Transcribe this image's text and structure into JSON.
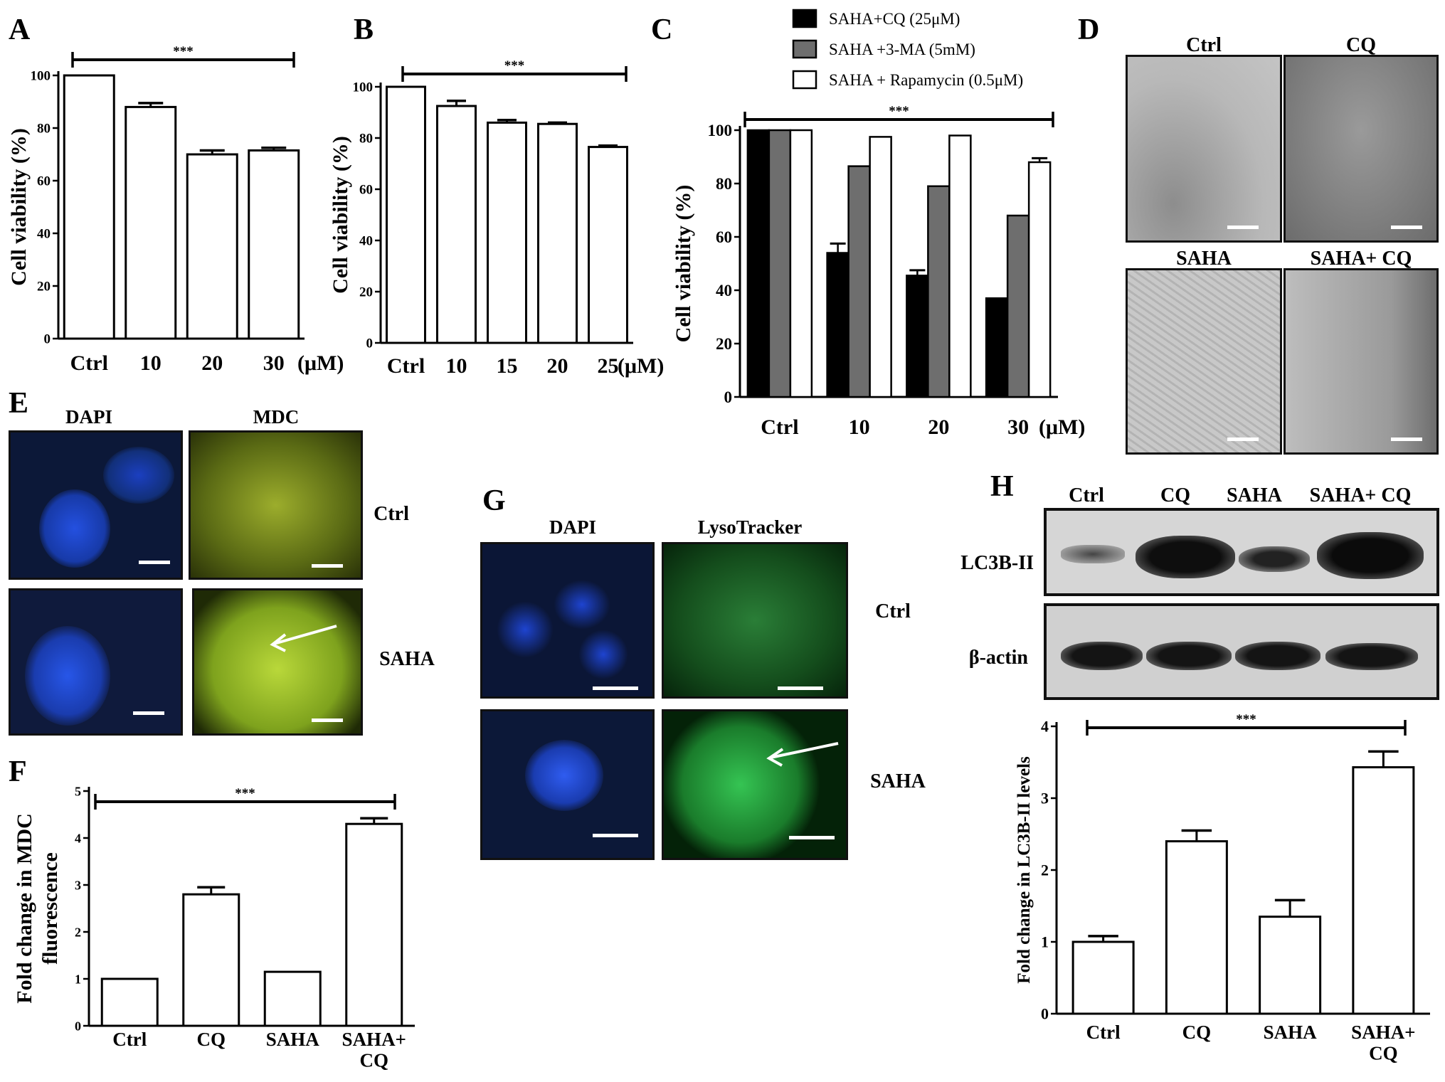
{
  "panels": {
    "A": {
      "letter": "A",
      "chart_data": {
        "type": "bar",
        "ylabel": "Cell viability (%)",
        "xlabel": "",
        "unit_label": "(μM)",
        "ylim": [
          0,
          100
        ],
        "yticks": [
          0,
          20,
          40,
          60,
          80,
          100
        ],
        "categories": [
          "Ctrl",
          "10",
          "20",
          "30"
        ],
        "series": [
          {
            "values": [
              100,
              88,
              70,
              71.5
            ],
            "errors": [
              0,
              1.5,
              1.5,
              1
            ]
          }
        ],
        "significance": "***"
      }
    },
    "B": {
      "letter": "B",
      "chart_data": {
        "type": "bar",
        "ylabel": "Cell viability (%)",
        "xlabel": "",
        "unit_label": "(μM)",
        "ylim": [
          0,
          100
        ],
        "yticks": [
          0,
          20,
          40,
          60,
          80,
          100
        ],
        "categories": [
          "Ctrl",
          "10",
          "15",
          "20",
          "25"
        ],
        "series": [
          {
            "values": [
              100,
              92.5,
              86,
              85.5,
              76.5
            ],
            "errors": [
              0,
              2,
              1,
              0.5,
              0.5
            ]
          }
        ],
        "significance": "***"
      }
    },
    "C": {
      "letter": "C",
      "chart_data": {
        "type": "bar",
        "ylabel": "Cell viability (%)",
        "xlabel": "",
        "unit_label": "(μM)",
        "ylim": [
          0,
          100
        ],
        "yticks": [
          0,
          20,
          40,
          60,
          80,
          100
        ],
        "categories": [
          "Ctrl",
          "10",
          "20",
          "30"
        ],
        "series": [
          {
            "name": "SAHA+CQ (25μM)",
            "values": [
              100,
              54,
              45.5,
              37
            ],
            "errors": [
              0,
              3.5,
              2,
              0
            ],
            "color": "#000000"
          },
          {
            "name": "SAHA +3-MA (5mM)",
            "values": [
              100,
              86.5,
              79,
              68
            ],
            "errors": [
              0,
              0,
              0,
              0
            ],
            "color": "#6e6e6e"
          },
          {
            "name": "SAHA + Rapamycin (0.5μM)",
            "values": [
              100,
              97.5,
              98,
              88
            ],
            "errors": [
              0,
              0,
              0,
              1.5
            ],
            "color": "#ffffff"
          }
        ],
        "legend_position": "top",
        "significance": "***"
      }
    },
    "D": {
      "letter": "D",
      "labels": [
        "Ctrl",
        "CQ",
        "SAHA",
        "SAHA+ CQ"
      ]
    },
    "E": {
      "letter": "E",
      "columns": [
        "DAPI",
        "MDC"
      ],
      "rows": [
        "Ctrl",
        "SAHA"
      ]
    },
    "F": {
      "letter": "F",
      "chart_data": {
        "type": "bar",
        "ylabel": "Fold change in MDC\nfluorescence",
        "xlabel": "",
        "ylim": [
          0,
          5
        ],
        "yticks": [
          0,
          1,
          2,
          3,
          4,
          5
        ],
        "categories": [
          "Ctrl",
          "CQ",
          "SAHA",
          "SAHA+\nCQ"
        ],
        "series": [
          {
            "values": [
              1.0,
              2.8,
              1.15,
              4.3
            ],
            "errors": [
              0,
              0.15,
              0,
              0.12
            ]
          }
        ],
        "significance": "***"
      }
    },
    "G": {
      "letter": "G",
      "columns": [
        "DAPI",
        "LysoTracker"
      ],
      "rows": [
        "Ctrl",
        "SAHA"
      ]
    },
    "H": {
      "letter": "H",
      "blot_lanes": [
        "Ctrl",
        "CQ",
        "SAHA",
        "SAHA+ CQ"
      ],
      "blot_rows": [
        "LC3B-II",
        "β-actin"
      ],
      "chart_data": {
        "type": "bar",
        "ylabel": "Fold change in LC3B-II levels",
        "xlabel": "",
        "ylim": [
          0,
          4
        ],
        "yticks": [
          0,
          1,
          2,
          3,
          4
        ],
        "categories": [
          "Ctrl",
          "CQ",
          "SAHA",
          "SAHA+\nCQ"
        ],
        "series": [
          {
            "values": [
              1.0,
              2.4,
              1.35,
              3.43
            ],
            "errors": [
              0.08,
              0.15,
              0.23,
              0.22
            ]
          }
        ],
        "significance": "***"
      }
    }
  },
  "colors": {
    "dapi": "#1a3bd6",
    "mdc": "#9fc12a",
    "lysotracker": "#2db34a",
    "micrograph_gray": "#b9b9b9",
    "blot_band": "#161616"
  }
}
